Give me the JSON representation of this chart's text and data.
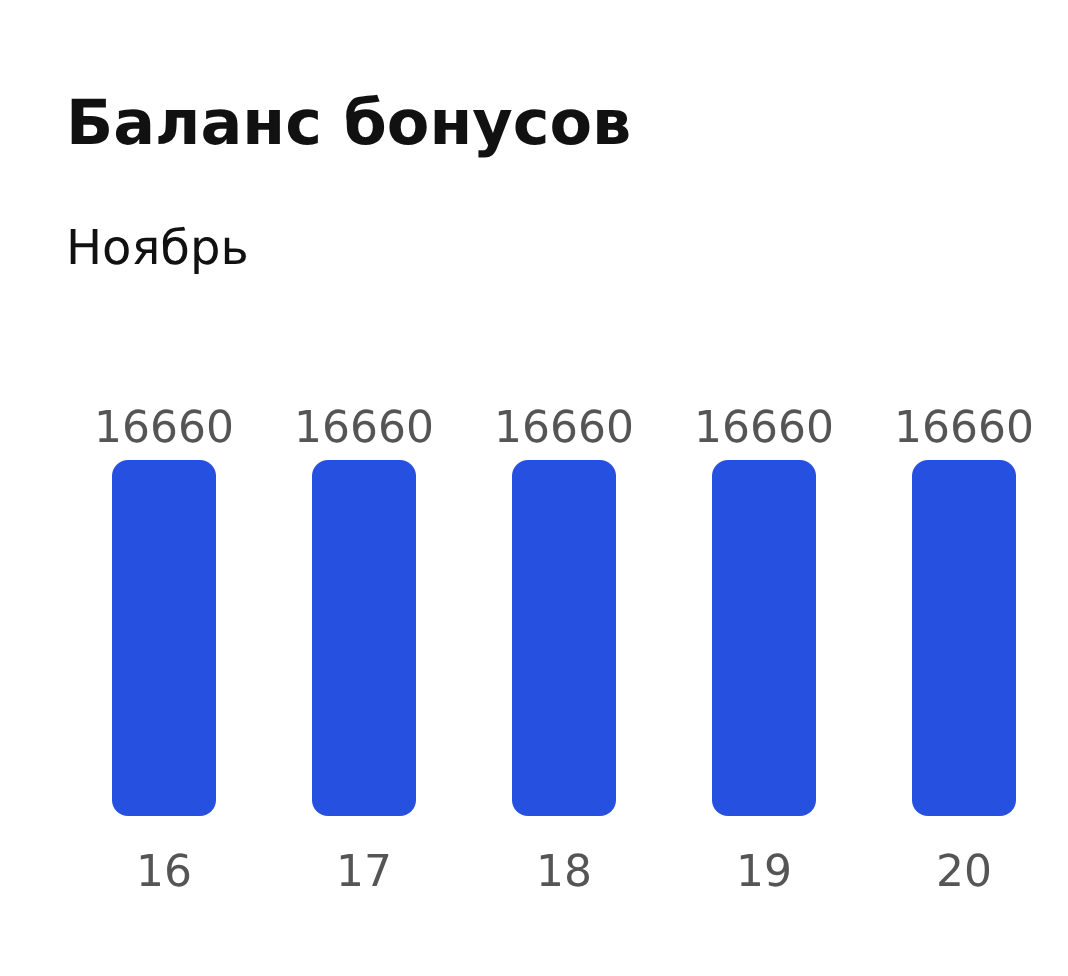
{
  "chart_data": {
    "type": "bar",
    "title": "Баланс бонусов",
    "subtitle": "Ноябрь",
    "categories": [
      "16",
      "17",
      "18",
      "19",
      "20"
    ],
    "values": [
      16660,
      16660,
      16660,
      16660,
      16660
    ],
    "color": "#2651e0",
    "data_labels": true
  }
}
